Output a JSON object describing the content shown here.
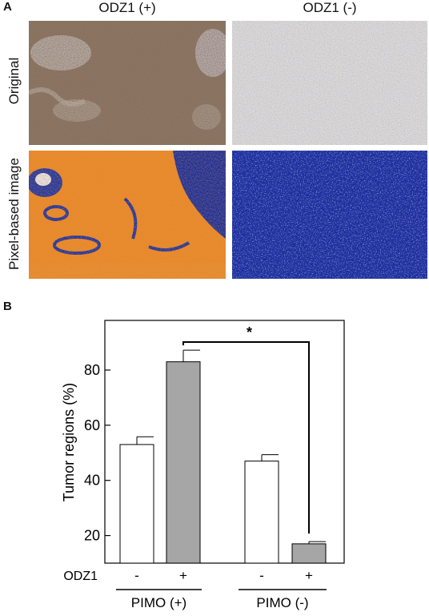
{
  "panel_a": {
    "letter": "A",
    "column_titles": [
      "ODZ1 (+)",
      "ODZ1 (-)"
    ],
    "row_titles": [
      "Original",
      "Pixel-based image"
    ]
  },
  "panel_b": {
    "letter": "B"
  },
  "chart_data": {
    "type": "bar",
    "ylabel": "Tumor regions (%)",
    "ylim": [
      10,
      98
    ],
    "yticks": [
      20,
      40,
      60,
      80
    ],
    "row_label": "ODZ1",
    "bars": [
      {
        "odz1": "-",
        "pimo": "PIMO (+)",
        "value": 53,
        "error": 2.8,
        "color": "#ffffff"
      },
      {
        "odz1": "+",
        "pimo": "PIMO (+)",
        "value": 83,
        "error": 4.2,
        "color": "#a6a6a6"
      },
      {
        "odz1": "-",
        "pimo": "PIMO (-)",
        "value": 47,
        "error": 2.3,
        "color": "#ffffff"
      },
      {
        "odz1": "+",
        "pimo": "PIMO (-)",
        "value": 17,
        "error": 0.8,
        "color": "#a6a6a6"
      }
    ],
    "group_labels": [
      "PIMO (+)",
      "PIMO (-)"
    ],
    "significance": {
      "label": "*",
      "from_bar": 1,
      "to_bar": 3
    }
  }
}
